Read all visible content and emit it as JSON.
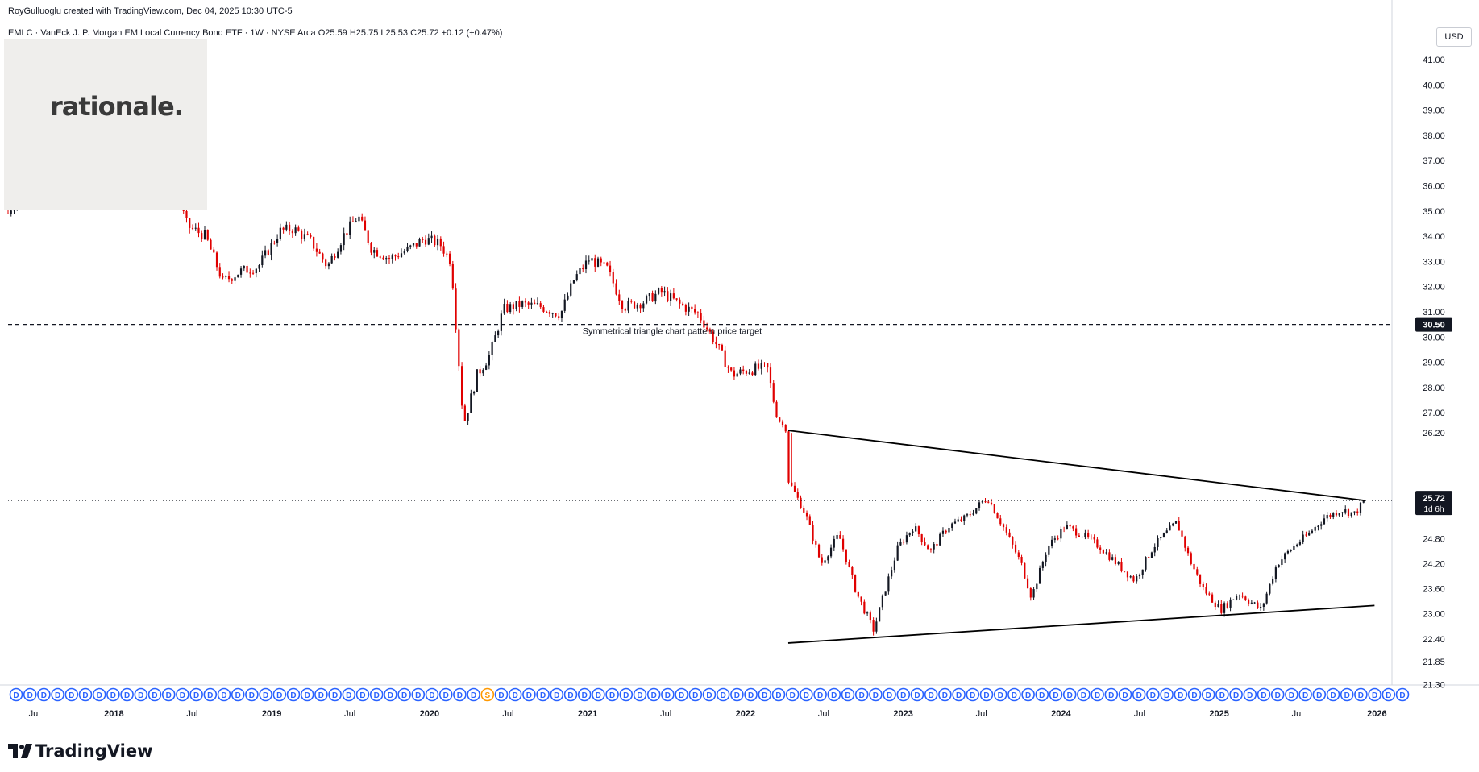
{
  "header": {
    "credit": "RoyGulluoglu created with TradingView.com, Dec 04, 2025 10:30 UTC-5",
    "symbol_line": "EMLC · VanEck J. P. Morgan EM Local Currency Bond ETF · 1W · NYSE Arca  O25.59  H25.75  L25.53  C25.72  +0.12 (+0.47%)"
  },
  "watermark": {
    "text": "rationale."
  },
  "currency": "USD",
  "footer": {
    "brand": "TradingView"
  },
  "price_axis": {
    "ticks": [
      "41.00",
      "40.00",
      "39.00",
      "38.00",
      "37.00",
      "36.00",
      "35.00",
      "34.00",
      "33.00",
      "32.00",
      "31.00",
      "30.00",
      "29.00",
      "28.00",
      "27.00",
      "26.20",
      "24.80",
      "24.20",
      "23.60",
      "23.00",
      "22.40",
      "21.85",
      "21.30"
    ],
    "target_label": "30.50",
    "last_price": "25.72",
    "countdown": "1d 6h"
  },
  "time_axis": {
    "labels": [
      "Jul",
      "2018",
      "Jul",
      "2019",
      "Jul",
      "2020",
      "Jul",
      "2021",
      "Jul",
      "2022",
      "Jul",
      "2023",
      "Jul",
      "2024",
      "Jul",
      "2025",
      "Jul",
      "2026"
    ]
  },
  "annotation": {
    "text": "Symmetrical triangle chart pattern price target"
  },
  "events": {
    "dividend_letter": "D",
    "split_letter": "S"
  },
  "colors": {
    "up": "#131722",
    "down": "#e00000",
    "text": "#131722",
    "line": "#000000",
    "event": "#2962ff",
    "split": "#ff9800"
  },
  "chart_data": {
    "type": "candlestick",
    "title": "EMLC · VanEck J. P. Morgan EM Local Currency Bond ETF · 1W · NYSE Arca",
    "x_range": [
      "2017-05",
      "2026-02"
    ],
    "ylim": [
      21.3,
      41.4
    ],
    "last_close": 25.72,
    "price_target": 30.5,
    "path_points": [
      [
        "2017-05-01",
        34.9
      ],
      [
        "2017-06-15",
        36.4
      ],
      [
        "2017-08-01",
        37.4
      ],
      [
        "2017-09-15",
        38.3
      ],
      [
        "2017-11-01",
        38.6
      ],
      [
        "2017-12-15",
        38.2
      ],
      [
        "2018-01-20",
        37.6
      ],
      [
        "2018-02-20",
        38.8
      ],
      [
        "2018-03-20",
        39.3
      ],
      [
        "2018-04-20",
        38.9
      ],
      [
        "2018-05-20",
        36.0
      ],
      [
        "2018-06-20",
        34.4
      ],
      [
        "2018-08-01",
        34.0
      ],
      [
        "2018-09-10",
        32.2
      ],
      [
        "2018-10-20",
        32.6
      ],
      [
        "2018-12-01",
        32.8
      ],
      [
        "2019-01-20",
        34.2
      ],
      [
        "2019-02-20",
        34.3
      ],
      [
        "2019-04-01",
        33.8
      ],
      [
        "2019-05-10",
        32.8
      ],
      [
        "2019-06-15",
        34.0
      ],
      [
        "2019-07-20",
        34.8
      ],
      [
        "2019-08-20",
        33.5
      ],
      [
        "2019-10-01",
        33.1
      ],
      [
        "2019-11-15",
        33.5
      ],
      [
        "2019-12-20",
        33.9
      ],
      [
        "2020-01-25",
        33.7
      ],
      [
        "2020-02-20",
        33.0
      ],
      [
        "2020-03-20",
        26.5
      ],
      [
        "2020-04-20",
        28.5
      ],
      [
        "2020-05-20",
        29.3
      ],
      [
        "2020-06-20",
        31.1
      ],
      [
        "2020-08-01",
        31.3
      ],
      [
        "2020-09-15",
        31.2
      ],
      [
        "2020-10-30",
        30.9
      ],
      [
        "2020-12-01",
        32.3
      ],
      [
        "2021-01-05",
        33.1
      ],
      [
        "2021-02-15",
        32.7
      ],
      [
        "2021-03-25",
        31.2
      ],
      [
        "2021-05-10",
        31.4
      ],
      [
        "2021-06-20",
        31.8
      ],
      [
        "2021-08-01",
        31.3
      ],
      [
        "2021-09-15",
        30.9
      ],
      [
        "2021-10-20",
        29.9
      ],
      [
        "2021-12-01",
        28.5
      ],
      [
        "2022-01-10",
        28.7
      ],
      [
        "2022-02-20",
        28.8
      ],
      [
        "2022-03-15",
        26.8
      ],
      [
        "2022-04-20",
        26.0
      ],
      [
        "2022-05-20",
        25.4
      ],
      [
        "2022-06-25",
        24.2
      ],
      [
        "2022-08-05",
        24.9
      ],
      [
        "2022-09-15",
        23.5
      ],
      [
        "2022-10-25",
        22.6
      ],
      [
        "2022-11-15",
        23.4
      ],
      [
        "2022-12-20",
        24.6
      ],
      [
        "2023-01-25",
        25.1
      ],
      [
        "2023-03-05",
        24.5
      ],
      [
        "2023-04-15",
        25.1
      ],
      [
        "2023-05-25",
        25.3
      ],
      [
        "2023-07-15",
        25.8
      ],
      [
        "2023-08-25",
        25.0
      ],
      [
        "2023-10-01",
        24.2
      ],
      [
        "2023-10-25",
        23.4
      ],
      [
        "2023-12-01",
        24.6
      ],
      [
        "2024-01-10",
        25.1
      ],
      [
        "2024-02-20",
        24.9
      ],
      [
        "2024-04-01",
        24.6
      ],
      [
        "2024-05-10",
        24.2
      ],
      [
        "2024-06-20",
        23.8
      ],
      [
        "2024-08-01",
        24.6
      ],
      [
        "2024-09-25",
        25.2
      ],
      [
        "2024-10-25",
        24.3
      ],
      [
        "2024-11-25",
        23.6
      ],
      [
        "2025-01-05",
        23.1
      ],
      [
        "2025-02-15",
        23.5
      ],
      [
        "2025-04-08",
        23.1
      ],
      [
        "2025-05-15",
        24.2
      ],
      [
        "2025-06-20",
        24.6
      ],
      [
        "2025-07-25",
        24.9
      ],
      [
        "2025-09-01",
        25.3
      ],
      [
        "2025-10-10",
        25.5
      ],
      [
        "2025-11-10",
        25.4
      ],
      [
        "2025-12-04",
        25.72
      ]
    ],
    "triangle_upper": [
      [
        "2022-04-10",
        26.3
      ],
      [
        "2025-12-04",
        25.72
      ]
    ],
    "triangle_lower": [
      [
        "2022-04-10",
        22.3
      ],
      [
        "2025-12-04",
        23.2
      ]
    ]
  }
}
